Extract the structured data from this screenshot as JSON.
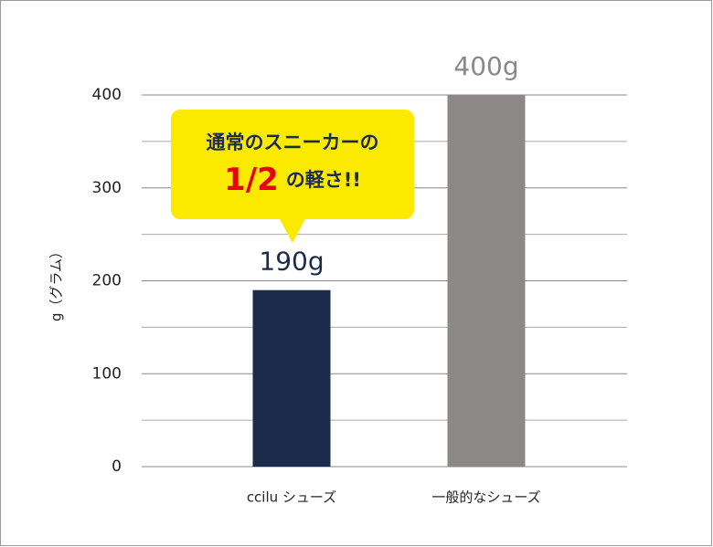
{
  "chart_data": {
    "type": "bar",
    "y_label": "g（グラム）",
    "categories": [
      "ccilu シューズ",
      "一般的なシューズ"
    ],
    "values": [
      190,
      400
    ],
    "value_labels": [
      "190g",
      "400g"
    ],
    "colors": [
      "#1c2b4b",
      "#8c8887"
    ],
    "value_label_colors": [
      "#1c2b4b",
      "#8c8887"
    ],
    "ylim": [
      0,
      400
    ],
    "yticks": [
      0,
      100,
      200,
      300,
      400
    ],
    "minor_yticks": [
      50,
      150,
      250,
      350
    ],
    "grid": true,
    "annotation": {
      "line1": "通常のスニーカーの",
      "emphasis": "1/2",
      "line2": "の軽さ!!"
    }
  }
}
